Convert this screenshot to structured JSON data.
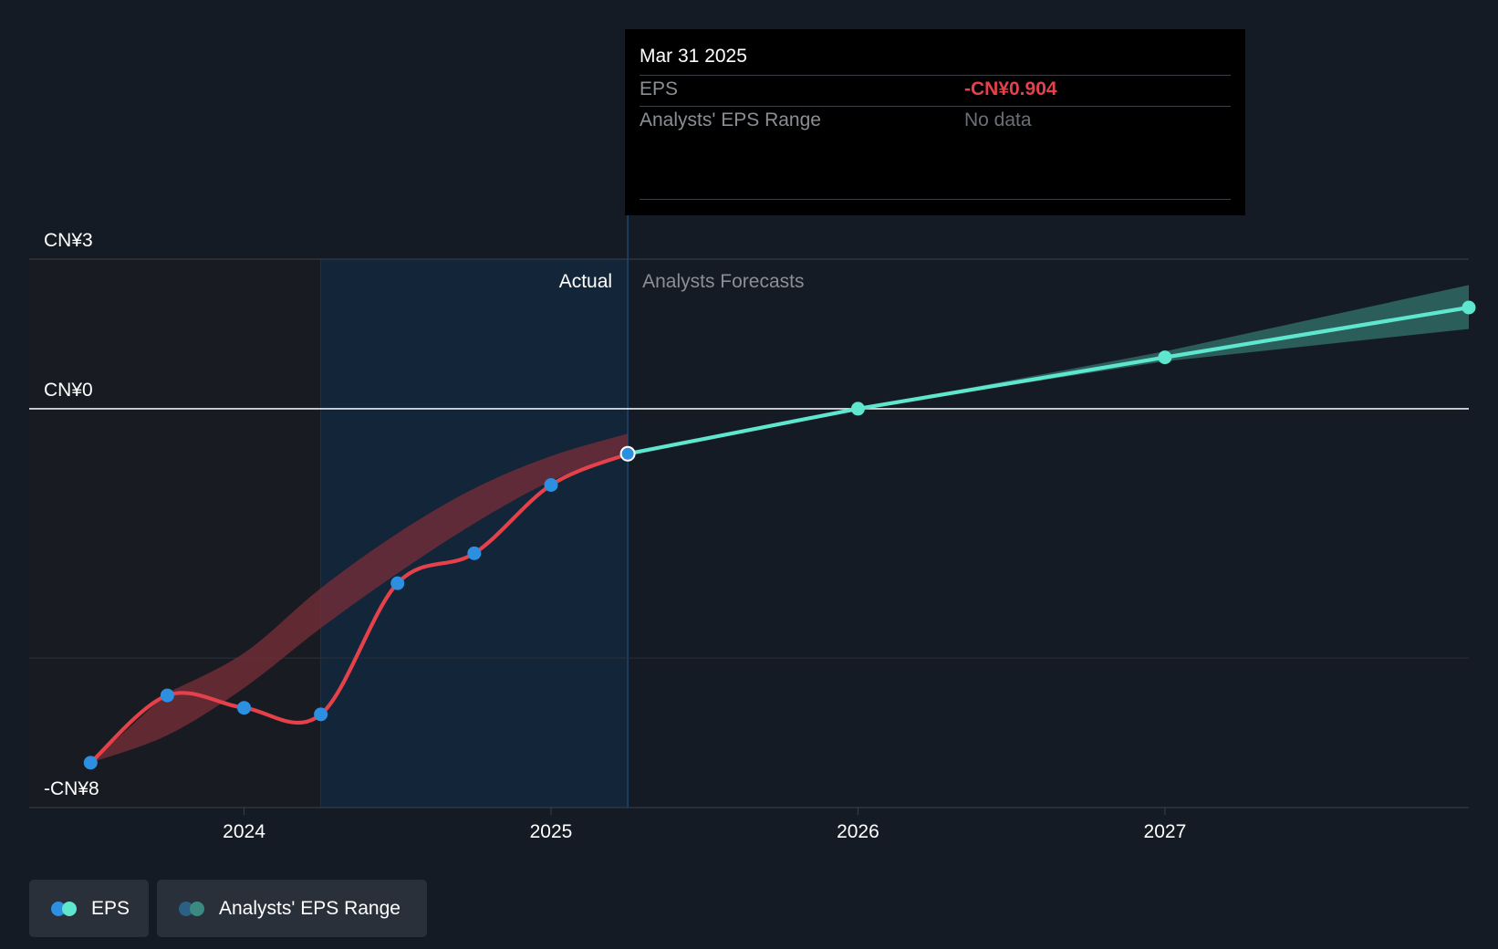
{
  "chart_data": {
    "type": "line",
    "currency_prefix": "CN¥",
    "y_ticks": [
      {
        "value": 3,
        "label": "CN¥3"
      },
      {
        "value": 0,
        "label": "CN¥0"
      },
      {
        "value": -8,
        "label": "-CN¥8"
      }
    ],
    "ylim": [
      -8,
      3
    ],
    "x_ticks": [
      {
        "value": 2024.0,
        "label": "2024"
      },
      {
        "value": 2025.0,
        "label": "2025"
      },
      {
        "value": 2026.0,
        "label": "2026"
      },
      {
        "value": 2027.0,
        "label": "2027"
      }
    ],
    "xlim": [
      2023.3,
      2027.99
    ],
    "past_region_start": 2024.25,
    "divider_x": 2025.25,
    "region_labels": {
      "actual": "Actual",
      "forecast": "Analysts Forecasts"
    },
    "series": [
      {
        "name": "EPS",
        "kind": "actual",
        "color": "#e5414a",
        "marker_color": "#2d8fe0",
        "points": [
          {
            "x": 2023.5,
            "y": -7.1
          },
          {
            "x": 2023.75,
            "y": -5.75
          },
          {
            "x": 2024.0,
            "y": -6.0
          },
          {
            "x": 2024.25,
            "y": -6.13
          },
          {
            "x": 2024.5,
            "y": -3.5
          },
          {
            "x": 2024.75,
            "y": -2.9
          },
          {
            "x": 2025.0,
            "y": -1.53
          },
          {
            "x": 2025.25,
            "y": -0.904
          }
        ]
      },
      {
        "name": "EPS",
        "kind": "forecast",
        "color": "#5ee6cf",
        "marker_color": "#5ee6cf",
        "points": [
          {
            "x": 2025.25,
            "y": -0.904
          },
          {
            "x": 2026.0,
            "y": 0.0
          },
          {
            "x": 2027.0,
            "y": 1.03
          },
          {
            "x": 2027.99,
            "y": 2.03
          }
        ]
      }
    ],
    "past_estimate_band": {
      "color": "#7a2e38",
      "upper": [
        {
          "x": 2023.75,
          "y": -5.7
        },
        {
          "x": 2024.0,
          "y": -4.9
        },
        {
          "x": 2024.25,
          "y": -3.6
        },
        {
          "x": 2024.5,
          "y": -2.5
        },
        {
          "x": 2024.75,
          "y": -1.6
        },
        {
          "x": 2025.0,
          "y": -0.95
        },
        {
          "x": 2025.25,
          "y": -0.5
        }
      ],
      "lower": [
        {
          "x": 2023.5,
          "y": -7.1
        },
        {
          "x": 2023.75,
          "y": -6.55
        },
        {
          "x": 2024.0,
          "y": -5.6
        },
        {
          "x": 2024.25,
          "y": -4.4
        },
        {
          "x": 2024.5,
          "y": -3.3
        },
        {
          "x": 2024.75,
          "y": -2.3
        },
        {
          "x": 2025.0,
          "y": -1.45
        },
        {
          "x": 2025.25,
          "y": -0.85
        }
      ]
    },
    "forecast_range": {
      "color": "#3a8a80",
      "upper": [
        {
          "x": 2026.0,
          "y": 0.0
        },
        {
          "x": 2027.0,
          "y": 1.15
        },
        {
          "x": 2027.99,
          "y": 2.48
        }
      ],
      "lower": [
        {
          "x": 2027.99,
          "y": 1.6
        },
        {
          "x": 2027.0,
          "y": 0.95
        },
        {
          "x": 2026.0,
          "y": 0.0
        }
      ]
    },
    "highlight_point": {
      "x": 2025.25,
      "y": -0.904
    },
    "tooltip": {
      "date": "Mar 31 2025",
      "rows": [
        {
          "label": "EPS",
          "value": "-CN¥0.904"
        },
        {
          "label": "Analysts' EPS Range",
          "value": "No data"
        }
      ]
    },
    "legend": [
      {
        "label": "EPS",
        "colors": [
          "#2d8fe0",
          "#5ee6cf"
        ]
      },
      {
        "label": "Analysts' EPS Range",
        "colors": [
          "#2a5f86",
          "#3a8a80"
        ]
      }
    ]
  }
}
